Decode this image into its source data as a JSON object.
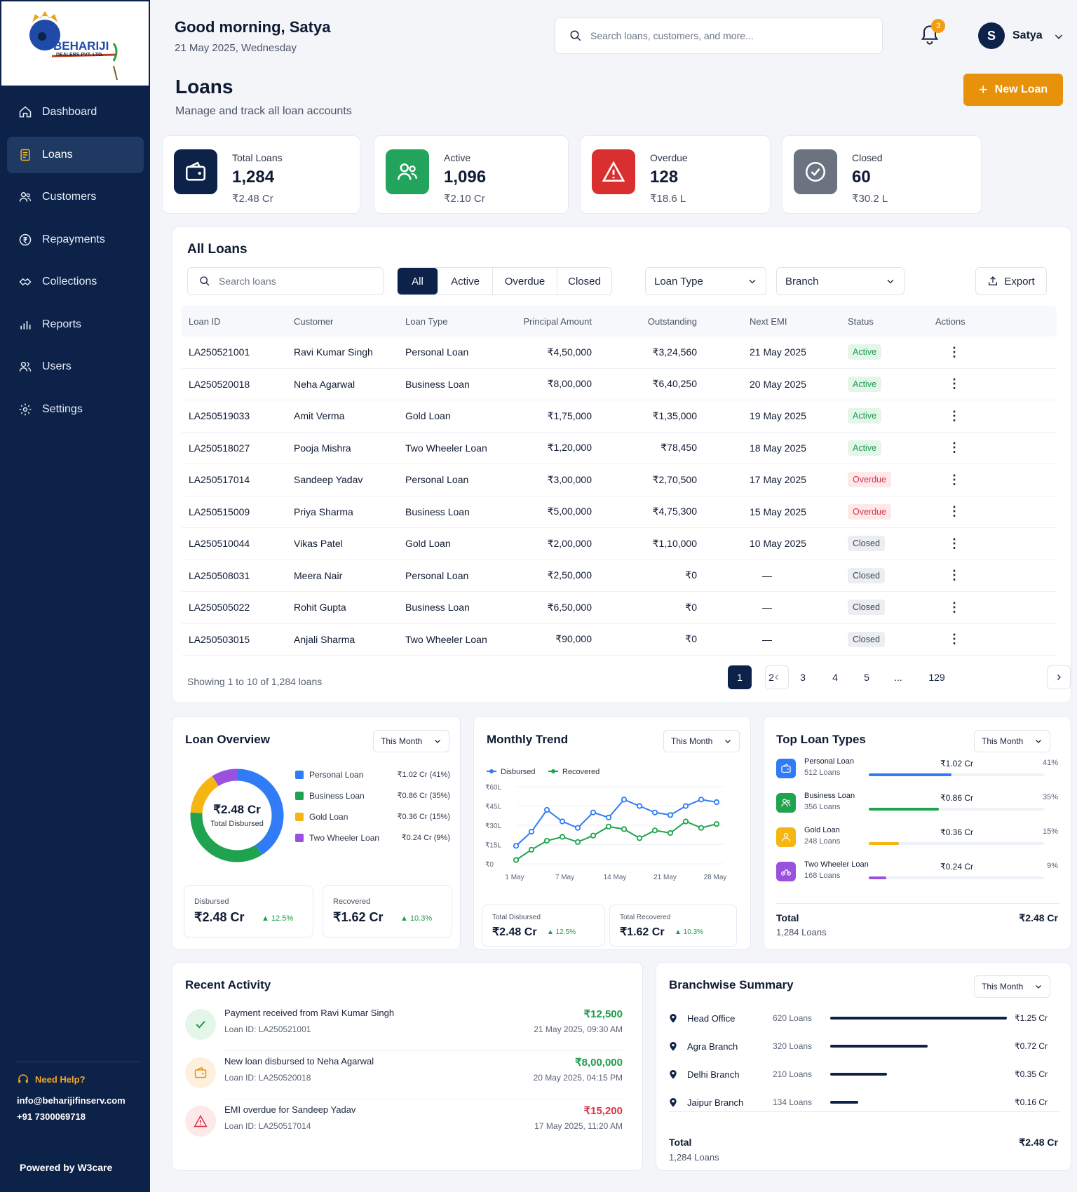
{
  "brand": {
    "name": "BEHARIJI",
    "sub": "DEALERS PVT. LTD."
  },
  "nav": [
    {
      "label": "Dashboard",
      "icon": "home-icon"
    },
    {
      "label": "Loans",
      "icon": "document-icon",
      "active": true
    },
    {
      "label": "Customers",
      "icon": "users-icon"
    },
    {
      "label": "Repayments",
      "icon": "rupee-icon"
    },
    {
      "label": "Collections",
      "icon": "handshake-icon"
    },
    {
      "label": "Reports",
      "icon": "bar-chart-icon"
    },
    {
      "label": "Users",
      "icon": "user-group-icon"
    },
    {
      "label": "Settings",
      "icon": "gear-icon"
    }
  ],
  "help": {
    "title": "Need Help?",
    "email": "info@beharijifinserv.com",
    "phone": "+91 7300069718"
  },
  "powered": "Powered by W3care",
  "header": {
    "greeting": "Good morning, Satya",
    "date": "21 May 2025, Wednesday",
    "search_placeholder": "Search loans, customers, and more...",
    "notif_count": "3",
    "avatar_letter": "S",
    "user_name": "Satya"
  },
  "page": {
    "title": "Loans",
    "subtitle": "Manage and track all loan accounts",
    "new_loan": "New Loan"
  },
  "stats": [
    {
      "label": "Total Loans",
      "value": "1,284",
      "amount": "₹2.48 Cr",
      "color": "#0c2248",
      "icon": "wallet-icon"
    },
    {
      "label": "Active",
      "value": "1,096",
      "amount": "₹2.10 Cr",
      "color": "#22a45d",
      "icon": "users-icon"
    },
    {
      "label": "Overdue",
      "value": "128",
      "amount": "₹18.6 L",
      "color": "#d9302f",
      "icon": "warning-icon"
    },
    {
      "label": "Closed",
      "value": "60",
      "amount": "₹30.2 L",
      "color": "#6b7280",
      "icon": "check-circle-icon"
    }
  ],
  "loans": {
    "title": "All Loans",
    "search_placeholder": "Search loans",
    "filters": [
      "All",
      "Active",
      "Overdue",
      "Closed"
    ],
    "loan_type": "Loan Type",
    "branch": "Branch",
    "export": "Export",
    "columns": [
      "Loan ID",
      "Customer",
      "Loan Type",
      "Principal Amount",
      "Outstanding",
      "Next EMI",
      "Status",
      "Actions"
    ],
    "rows": [
      [
        "LA250521001",
        "Ravi Kumar Singh",
        "Personal Loan",
        "₹4,50,000",
        "₹3,24,560",
        "21 May 2025",
        "Active"
      ],
      [
        "LA250520018",
        "Neha Agarwal",
        "Business Loan",
        "₹8,00,000",
        "₹6,40,250",
        "20 May 2025",
        "Active"
      ],
      [
        "LA250519033",
        "Amit Verma",
        "Gold Loan",
        "₹1,75,000",
        "₹1,35,000",
        "19 May 2025",
        "Active"
      ],
      [
        "LA250518027",
        "Pooja Mishra",
        "Two Wheeler Loan",
        "₹1,20,000",
        "₹78,450",
        "18 May 2025",
        "Active"
      ],
      [
        "LA250517014",
        "Sandeep Yadav",
        "Personal Loan",
        "₹3,00,000",
        "₹2,70,500",
        "17 May 2025",
        "Overdue"
      ],
      [
        "LA250515009",
        "Priya Sharma",
        "Business Loan",
        "₹5,00,000",
        "₹4,75,300",
        "15 May 2025",
        "Overdue"
      ],
      [
        "LA250510044",
        "Vikas Patel",
        "Gold Loan",
        "₹2,00,000",
        "₹1,10,000",
        "10 May 2025",
        "Closed"
      ],
      [
        "LA250508031",
        "Meera Nair",
        "Personal Loan",
        "₹2,50,000",
        "₹0",
        "—",
        "Closed"
      ],
      [
        "LA250505022",
        "Rohit Gupta",
        "Business Loan",
        "₹6,50,000",
        "₹0",
        "—",
        "Closed"
      ],
      [
        "LA250503015",
        "Anjali Sharma",
        "Two Wheeler Loan",
        "₹90,000",
        "₹0",
        "—",
        "Closed"
      ]
    ],
    "showing": "Showing 1 to 10 of 1,284 loans",
    "pages": [
      "1",
      "2",
      "3",
      "4",
      "5",
      "...",
      "129"
    ]
  },
  "overview": {
    "title": "Loan Overview",
    "period": "This Month",
    "center_value": "₹2.48 Cr",
    "center_label": "Total Disbursed",
    "legend": [
      {
        "name": "Personal Loan",
        "value": "₹1.02 Cr (41%)",
        "pct": 41,
        "color": "#2f7cf6"
      },
      {
        "name": "Business Loan",
        "value": "₹0.86 Cr (35%)",
        "pct": 35,
        "color": "#1fa34f"
      },
      {
        "name": "Gold Loan",
        "value": "₹0.36 Cr (15%)",
        "pct": 15,
        "color": "#f5b614"
      },
      {
        "name": "Two Wheeler Loan",
        "value": "₹0.24 Cr (9%)",
        "pct": 9,
        "color": "#9b51e0"
      }
    ],
    "disbursed_label": "Disbursed",
    "disbursed": "₹2.48 Cr",
    "disbursed_change": "▲ 12.5%",
    "recovered_label": "Recovered",
    "recovered": "₹1.62 Cr",
    "recovered_change": "▲ 10.3%"
  },
  "chart_data": {
    "type": "line",
    "title": "Monthly Trend",
    "x": [
      1,
      2,
      3,
      4,
      5,
      6,
      7,
      8,
      9,
      10,
      11,
      12,
      13,
      14
    ],
    "xticks": [
      "1 May",
      "7 May",
      "14 May",
      "21 May",
      "28 May"
    ],
    "yticks": [
      "₹0",
      "₹15L",
      "₹30L",
      "₹45L",
      "₹60L"
    ],
    "ylim": [
      0,
      60
    ],
    "series": [
      {
        "name": "Disbursed",
        "color": "#2f7cf6",
        "values": [
          14,
          25,
          42,
          33,
          28,
          40,
          36,
          50,
          45,
          40,
          38,
          45,
          50,
          48
        ]
      },
      {
        "name": "Recovered",
        "color": "#1fa34f",
        "values": [
          3,
          11,
          18,
          21,
          17,
          22,
          29,
          27,
          20,
          26,
          24,
          33,
          28,
          31
        ]
      }
    ],
    "period": "This Month",
    "total_disbursed_label": "Total Disbursed",
    "total_disbursed": "₹2.48 Cr",
    "disbursed_change": "▲ 12.5%",
    "total_recovered_label": "Total Recovered",
    "total_recovered": "₹1.62 Cr",
    "recovered_change": "▲ 10.3%"
  },
  "top_types": {
    "title": "Top Loan Types",
    "period": "This Month",
    "items": [
      {
        "name": "Personal Loan",
        "count": "512 Loans",
        "amount": "₹1.02 Cr",
        "pct": "41%",
        "frac": 0.41,
        "color": "#2f7cf6",
        "icon": "wallet-icon"
      },
      {
        "name": "Business Loan",
        "count": "356 Loans",
        "amount": "₹0.86 Cr",
        "pct": "35%",
        "frac": 0.35,
        "color": "#1fa34f",
        "icon": "users-icon"
      },
      {
        "name": "Gold Loan",
        "count": "248 Loans",
        "amount": "₹0.36 Cr",
        "pct": "15%",
        "frac": 0.15,
        "color": "#f5b614",
        "icon": "user-icon"
      },
      {
        "name": "Two Wheeler Loan",
        "count": "168 Loans",
        "amount": "₹0.24 Cr",
        "pct": "9%",
        "frac": 0.09,
        "color": "#9b51e0",
        "icon": "bike-icon"
      }
    ],
    "total_label": "Total",
    "total_count": "1,284 Loans",
    "total_amount": "₹2.48 Cr"
  },
  "activity": {
    "title": "Recent Activity",
    "items": [
      {
        "text": "Payment received from Ravi Kumar Singh",
        "sub": "Loan ID: LA250521001",
        "amount": "₹12,500",
        "date": "21 May 2025, 09:30 AM",
        "color": "#1e9b4a",
        "bg": "#e4f6ea",
        "icon": "check-icon"
      },
      {
        "text": "New loan disbursed to Neha Agarwal",
        "sub": "Loan ID: LA250520018",
        "amount": "₹8,00,000",
        "date": "20 May 2025, 04:15 PM",
        "color": "#1e9b4a",
        "bg": "#fdf1dd",
        "icon": "wallet-icon"
      },
      {
        "text": "EMI overdue for Sandeep Yadav",
        "sub": "Loan ID: LA250517014",
        "amount": "₹15,200",
        "date": "17 May 2025, 11:20 AM",
        "color": "#d93545",
        "bg": "#fde8ea",
        "icon": "warning-icon"
      }
    ]
  },
  "branches": {
    "title": "Branchwise Summary",
    "period": "This Month",
    "items": [
      {
        "name": "Head Office",
        "count": "620 Loans",
        "amount": "₹1.25 Cr",
        "frac": 1.0
      },
      {
        "name": "Agra Branch",
        "count": "320 Loans",
        "amount": "₹0.72 Cr",
        "frac": 0.55
      },
      {
        "name": "Delhi Branch",
        "count": "210 Loans",
        "amount": "₹0.35 Cr",
        "frac": 0.32
      },
      {
        "name": "Jaipur Branch",
        "count": "134 Loans",
        "amount": "₹0.16 Cr",
        "frac": 0.16
      }
    ],
    "total_label": "Total",
    "total_count": "1,284 Loans",
    "total_amount": "₹2.48 Cr"
  }
}
